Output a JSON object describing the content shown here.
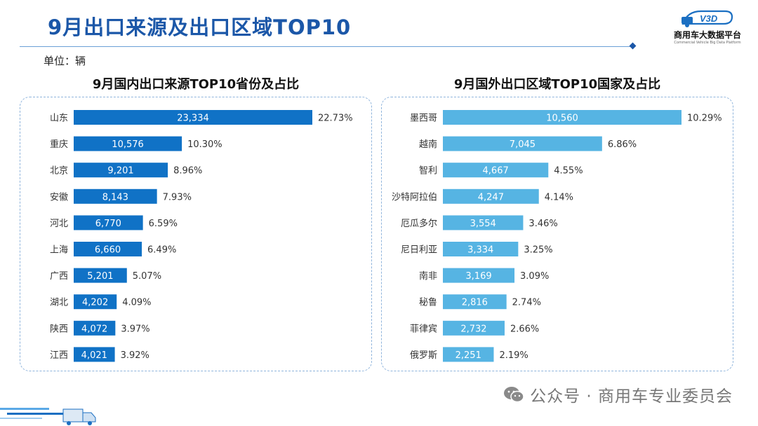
{
  "header": {
    "title": "9月出口来源及出口区域TOP10",
    "unit": "单位：辆",
    "logo_text": "商用车大数据平台",
    "logo_subtext": "Commercial Vehicle Big Data Platform",
    "logo_badge": "V3D"
  },
  "colors": {
    "title": "#1b57a8",
    "left_bar": "#1072c6",
    "right_bar": "#56b4e3",
    "panel_border": "#8fb4dc"
  },
  "watermark": {
    "text": "公众号 · 商用车专业委员会",
    "icon": "wechat-icon"
  },
  "chart_data": [
    {
      "type": "bar",
      "orientation": "horizontal",
      "title": "9月国内出口来源TOP10省份及占比",
      "categories": [
        "山东",
        "重庆",
        "北京",
        "安徽",
        "河北",
        "上海",
        "广西",
        "湖北",
        "陕西",
        "江西"
      ],
      "values": [
        23334,
        10576,
        9201,
        8143,
        6770,
        6660,
        5201,
        4202,
        4072,
        4021
      ],
      "value_labels": [
        "23,334",
        "10,576",
        "9,201",
        "8,143",
        "6,770",
        "6,660",
        "5,201",
        "4,202",
        "4,072",
        "4,021"
      ],
      "share_labels": [
        "22.73%",
        "10.30%",
        "8.96%",
        "7.93%",
        "6.59%",
        "6.49%",
        "5.07%",
        "4.09%",
        "3.97%",
        "3.92%"
      ],
      "xlim": [
        0,
        23334
      ],
      "grid": false,
      "legend": "none"
    },
    {
      "type": "bar",
      "orientation": "horizontal",
      "title": "9月国外出口区域TOP10国家及占比",
      "categories": [
        "墨西哥",
        "越南",
        "智利",
        "沙特阿拉伯",
        "厄瓜多尔",
        "尼日利亚",
        "南非",
        "秘鲁",
        "菲律宾",
        "俄罗斯"
      ],
      "values": [
        10560,
        7045,
        4667,
        4247,
        3554,
        3334,
        3169,
        2816,
        2732,
        2251
      ],
      "value_labels": [
        "10,560",
        "7,045",
        "4,667",
        "4,247",
        "3,554",
        "3,334",
        "3,169",
        "2,816",
        "2,732",
        "2,251"
      ],
      "share_labels": [
        "10.29%",
        "6.86%",
        "4.55%",
        "4.14%",
        "3.46%",
        "3.25%",
        "3.09%",
        "2.74%",
        "2.66%",
        "2.19%"
      ],
      "xlim": [
        0,
        10560
      ],
      "grid": false,
      "legend": "none"
    }
  ]
}
